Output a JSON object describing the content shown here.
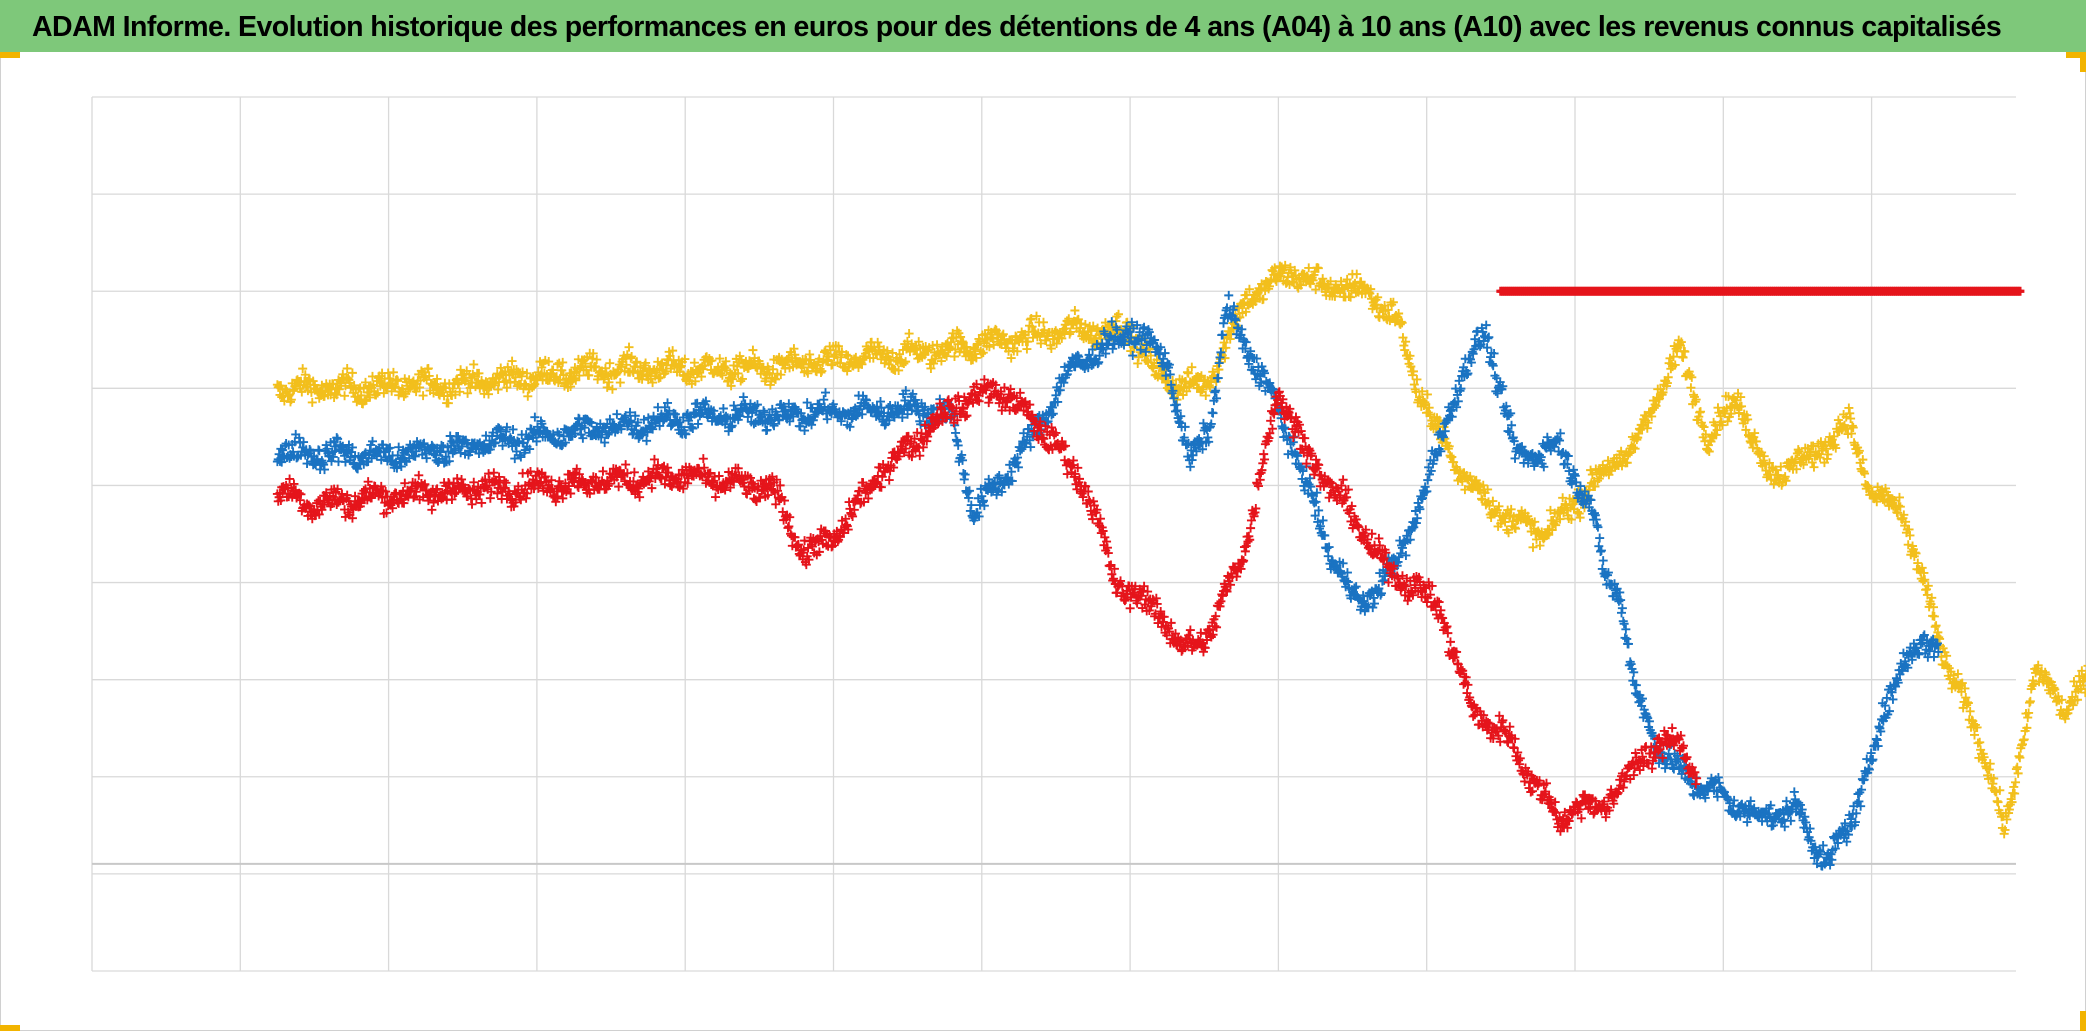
{
  "page": {
    "title": "ADAM Informe. Evolution historique des performances en euros pour des détentions de 4 ans (A04) à 10 ans (A10) avec les revenus connus capitalisés",
    "title_bar_color": "#7ec87a",
    "corner_marker_color": "#f2b400"
  },
  "chart_data": {
    "type": "scatter",
    "marker": "plus",
    "title": "ADAM Informe. Evolution historique des performances en euros pour des détentions de 4 ans (A04) à 10 ans (A10) avec les revenus connus capitalisés",
    "xlabel": "",
    "ylabel": "",
    "xlim": [
      0,
      13
    ],
    "ylim": [
      0,
      9
    ],
    "grid": true,
    "tick_labels_shown": false,
    "legend": "none",
    "reference_line": {
      "y": 1.0,
      "color": "#c8c8c8"
    },
    "series": [
      {
        "color": "#f2bf1c",
        "anchors": [
          [
            1.25,
            6.0
          ],
          [
            1.7,
            6.0
          ],
          [
            2.5,
            6.05
          ],
          [
            3.5,
            6.2
          ],
          [
            4.5,
            6.2
          ],
          [
            5.5,
            6.35
          ],
          [
            6.2,
            6.5
          ],
          [
            6.6,
            6.6
          ],
          [
            7.0,
            6.6
          ],
          [
            7.2,
            6.1
          ],
          [
            7.5,
            6.0
          ],
          [
            7.8,
            6.95
          ],
          [
            8.1,
            7.2
          ],
          [
            8.3,
            7.05
          ],
          [
            8.6,
            7.0
          ],
          [
            8.8,
            6.7
          ],
          [
            8.95,
            5.95
          ],
          [
            9.2,
            5.2
          ],
          [
            9.5,
            4.7
          ],
          [
            9.8,
            4.5
          ],
          [
            10.1,
            5.0
          ],
          [
            10.4,
            5.4
          ],
          [
            10.7,
            6.4
          ],
          [
            10.9,
            5.5
          ],
          [
            11.1,
            5.9
          ],
          [
            11.3,
            5.1
          ],
          [
            11.6,
            5.3
          ],
          [
            11.85,
            5.65
          ],
          [
            12.0,
            4.9
          ],
          [
            12.2,
            4.75
          ],
          [
            12.5,
            3.2
          ],
          [
            12.8,
            2.1
          ],
          [
            12.9,
            1.4
          ],
          [
            13.0,
            2.2
          ],
          [
            13.1,
            3.1
          ],
          [
            13.3,
            2.7
          ],
          [
            13.5,
            3.1
          ]
        ]
      },
      {
        "color": "#1a73c2",
        "anchors": [
          [
            1.25,
            5.35
          ],
          [
            2.0,
            5.3
          ],
          [
            3.0,
            5.5
          ],
          [
            4.0,
            5.7
          ],
          [
            5.0,
            5.75
          ],
          [
            5.6,
            5.8
          ],
          [
            5.8,
            5.7
          ],
          [
            5.95,
            4.7
          ],
          [
            6.3,
            5.4
          ],
          [
            6.6,
            6.2
          ],
          [
            7.0,
            6.6
          ],
          [
            7.25,
            6.3
          ],
          [
            7.4,
            5.2
          ],
          [
            7.55,
            5.7
          ],
          [
            7.65,
            6.8
          ],
          [
            7.9,
            6.1
          ],
          [
            8.1,
            5.4
          ],
          [
            8.35,
            4.3
          ],
          [
            8.55,
            3.75
          ],
          [
            8.8,
            4.2
          ],
          [
            9.0,
            5.0
          ],
          [
            9.2,
            6.0
          ],
          [
            9.4,
            6.6
          ],
          [
            9.6,
            5.3
          ],
          [
            9.9,
            5.4
          ],
          [
            10.1,
            4.8
          ],
          [
            10.2,
            4.1
          ],
          [
            10.3,
            3.9
          ],
          [
            10.4,
            2.9
          ],
          [
            10.6,
            2.2
          ],
          [
            10.8,
            1.95
          ],
          [
            11.0,
            1.8
          ],
          [
            11.2,
            1.6
          ],
          [
            11.5,
            1.65
          ],
          [
            11.7,
            1.1
          ],
          [
            11.85,
            1.5
          ],
          [
            12.0,
            2.2
          ],
          [
            12.2,
            3.2
          ],
          [
            12.45,
            3.4
          ]
        ]
      },
      {
        "color": "#e5141b",
        "anchors": [
          [
            1.25,
            4.95
          ],
          [
            1.5,
            4.8
          ],
          [
            2.0,
            4.9
          ],
          [
            3.0,
            5.0
          ],
          [
            4.0,
            5.1
          ],
          [
            4.6,
            4.95
          ],
          [
            4.8,
            4.3
          ],
          [
            5.0,
            4.45
          ],
          [
            5.3,
            5.1
          ],
          [
            5.5,
            5.4
          ],
          [
            5.8,
            5.8
          ],
          [
            6.1,
            6.0
          ],
          [
            6.4,
            5.6
          ],
          [
            6.7,
            5.0
          ],
          [
            6.9,
            4.0
          ],
          [
            7.2,
            3.7
          ],
          [
            7.35,
            3.3
          ],
          [
            7.55,
            3.5
          ],
          [
            7.8,
            4.5
          ],
          [
            8.0,
            6.0
          ],
          [
            8.2,
            5.3
          ],
          [
            8.45,
            4.8
          ],
          [
            8.75,
            4.1
          ],
          [
            8.9,
            4.0
          ],
          [
            9.1,
            3.7
          ],
          [
            9.3,
            2.7
          ],
          [
            9.55,
            2.4
          ],
          [
            9.7,
            2.0
          ],
          [
            9.9,
            1.55
          ],
          [
            10.0,
            1.7
          ],
          [
            10.2,
            1.7
          ],
          [
            10.45,
            2.2
          ],
          [
            10.7,
            2.4
          ],
          [
            10.82,
            2.0
          ]
        ]
      },
      {
        "color": "#e5141b",
        "anchors": [
          [
            9.5,
            7.0
          ],
          [
            13.0,
            7.0
          ]
        ]
      }
    ]
  }
}
